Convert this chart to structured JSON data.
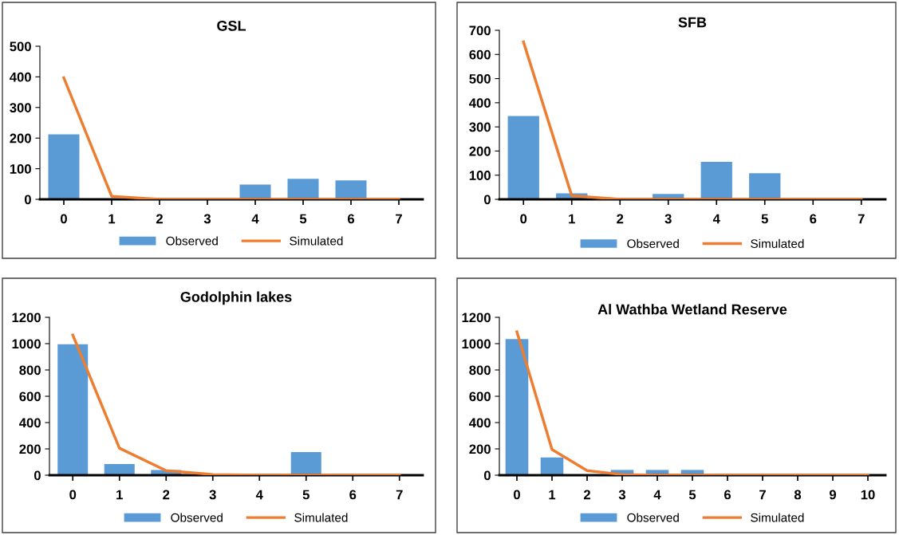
{
  "chart_data": [
    {
      "type": "bar",
      "title": "GSL",
      "categories": [
        "0",
        "1",
        "2",
        "3",
        "4",
        "5",
        "6",
        "7"
      ],
      "ylim": [
        0,
        500
      ],
      "yticks": [
        0,
        100,
        200,
        300,
        400,
        500
      ],
      "grid": false,
      "legend": "bottom",
      "series": [
        {
          "name": "Observed",
          "color": "#5b9bd5",
          "values": [
            212,
            null,
            0,
            0,
            48,
            67,
            62,
            0
          ]
        },
        {
          "name": "Simulated",
          "type": "line",
          "color": "#ed7d31",
          "values": [
            397,
            10,
            0,
            0,
            0,
            0,
            0,
            0
          ]
        }
      ]
    },
    {
      "type": "bar",
      "title": "SFB",
      "categories": [
        "0",
        "1",
        "2",
        "3",
        "4",
        "5",
        "6",
        "7"
      ],
      "ylim": [
        0,
        700
      ],
      "yticks": [
        0,
        100,
        200,
        300,
        400,
        500,
        600,
        700
      ],
      "grid": false,
      "legend": "bottom",
      "series": [
        {
          "name": "Observed",
          "color": "#5b9bd5",
          "values": [
            345,
            25,
            0,
            22,
            155,
            108,
            0,
            0
          ]
        },
        {
          "name": "Simulated",
          "type": "line",
          "color": "#ed7d31",
          "values": [
            652,
            15,
            0,
            0,
            0,
            0,
            0,
            0
          ]
        }
      ]
    },
    {
      "type": "bar",
      "title": "Godolphin lakes",
      "categories": [
        "0",
        "1",
        "2",
        "3",
        "4",
        "5",
        "6",
        "7"
      ],
      "ylim": [
        0,
        1200
      ],
      "yticks": [
        0,
        200,
        400,
        600,
        800,
        1000,
        1200
      ],
      "grid": false,
      "legend": "bottom",
      "series": [
        {
          "name": "Observed",
          "color": "#5b9bd5",
          "values": [
            995,
            85,
            40,
            0,
            0,
            175,
            0,
            0
          ]
        },
        {
          "name": "Simulated",
          "type": "line",
          "color": "#ed7d31",
          "values": [
            1065,
            205,
            35,
            5,
            0,
            0,
            0,
            0
          ]
        }
      ]
    },
    {
      "type": "bar",
      "title": "Al Wathba Wetland Reserve",
      "categories": [
        "0",
        "1",
        "2",
        "3",
        "4",
        "5",
        "6",
        "7",
        "8",
        "9",
        "10"
      ],
      "ylim": [
        0,
        1200
      ],
      "yticks": [
        0,
        200,
        400,
        600,
        800,
        1000,
        1200
      ],
      "grid": false,
      "legend": "bottom",
      "series": [
        {
          "name": "Observed",
          "color": "#5b9bd5",
          "values": [
            1035,
            135,
            0,
            40,
            40,
            40,
            0,
            0,
            0,
            0,
            0
          ]
        },
        {
          "name": "Simulated",
          "type": "line",
          "color": "#ed7d31",
          "values": [
            1090,
            195,
            35,
            5,
            0,
            0,
            0,
            0,
            0,
            0,
            0
          ]
        }
      ]
    }
  ]
}
